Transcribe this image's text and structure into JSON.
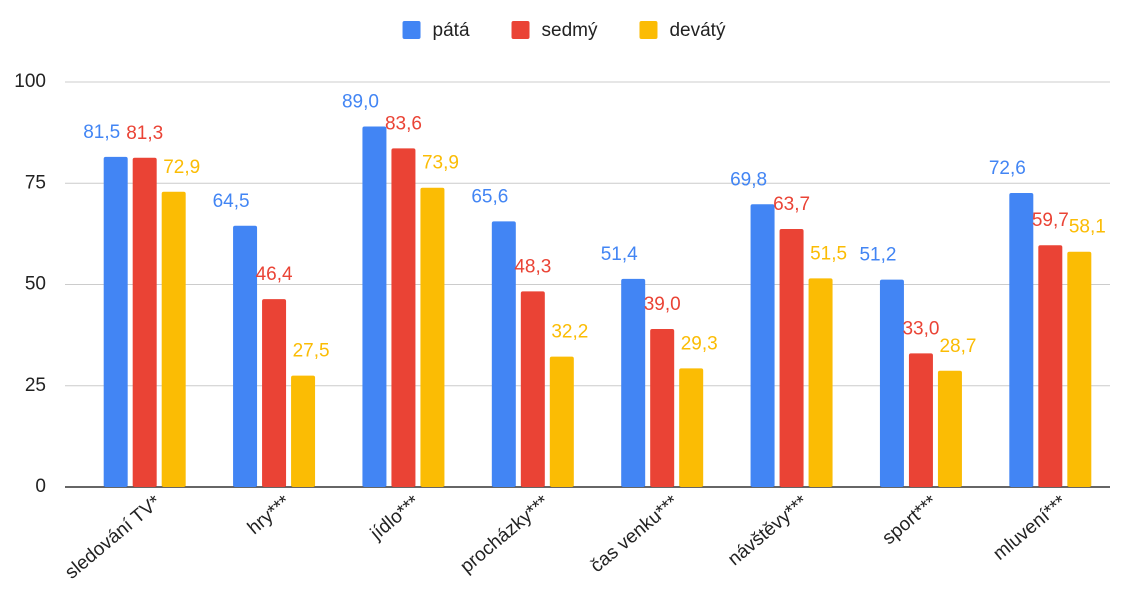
{
  "chart_data": {
    "type": "bar",
    "categories": [
      "sledování TV*",
      "hry***",
      "jídlo***",
      "procházky***",
      "čas venku***",
      "návštěvy***",
      "sport***",
      "mluvení***"
    ],
    "series": [
      {
        "name": "pátá",
        "color": "#4285f4",
        "values": [
          81.5,
          64.5,
          89.0,
          65.6,
          51.4,
          69.8,
          51.2,
          72.6
        ],
        "value_labels": [
          "81,5",
          "64,5",
          "89,0",
          "65,6",
          "51,4",
          "69,8",
          "51,2",
          "72,6"
        ]
      },
      {
        "name": "sedmý",
        "color": "#ea4335",
        "values": [
          81.3,
          46.4,
          83.6,
          48.3,
          39.0,
          63.7,
          33.0,
          59.7
        ],
        "value_labels": [
          "81,3",
          "46,4",
          "83,6",
          "48,3",
          "39,0",
          "63,7",
          "33,0",
          "59,7"
        ]
      },
      {
        "name": "devátý",
        "color": "#fbbc04",
        "values": [
          72.9,
          27.5,
          73.9,
          32.2,
          29.3,
          51.5,
          28.7,
          58.1
        ],
        "value_labels": [
          "72,9",
          "27,5",
          "73,9",
          "32,2",
          "29,3",
          "51,5",
          "28,7",
          "58,1"
        ]
      }
    ],
    "ylim": [
      0,
      100
    ],
    "yticks": [
      0,
      25,
      50,
      75,
      100
    ],
    "grid": true,
    "legend": "top"
  }
}
